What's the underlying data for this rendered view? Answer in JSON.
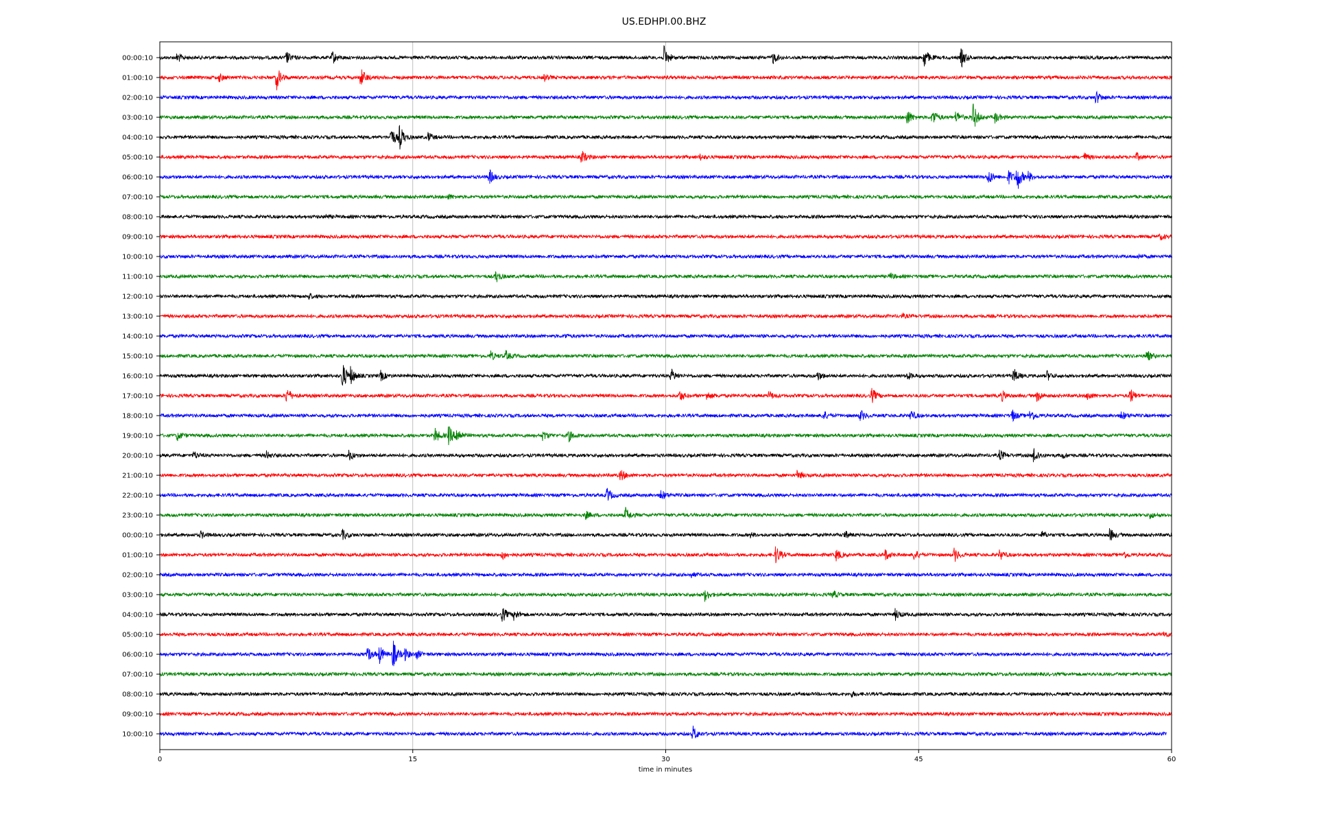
{
  "chart_data": {
    "type": "line",
    "title": "US.EDHPI.00.BHZ",
    "xlabel": "time in minutes",
    "ylabel": "",
    "xlim": [
      0,
      60
    ],
    "x_ticks": [
      0,
      15,
      30,
      45,
      60
    ],
    "x_tick_labels": [
      "0",
      "15",
      "30",
      "45",
      "60"
    ],
    "grid": "vertical lines at x ticks",
    "colors": [
      "#000000",
      "#ff0000",
      "#0000ff",
      "#008000"
    ],
    "y_tick_labels": [
      "00:00:10",
      "01:00:10",
      "02:00:10",
      "03:00:10",
      "04:00:10",
      "05:00:10",
      "06:00:10",
      "07:00:10",
      "08:00:10",
      "09:00:10",
      "10:00:10",
      "11:00:10",
      "12:00:10",
      "13:00:10",
      "14:00:10",
      "15:00:10",
      "16:00:10",
      "17:00:10",
      "18:00:10",
      "19:00:10",
      "20:00:10",
      "21:00:10",
      "22:00:10",
      "23:00:10",
      "00:00:10",
      "01:00:10",
      "02:00:10",
      "03:00:10",
      "04:00:10",
      "05:00:10",
      "06:00:10",
      "07:00:10",
      "08:00:10",
      "09:00:10",
      "10:00:10"
    ],
    "last_trace_end_minute": 59.7,
    "events": [
      [
        [
          1.0,
          0.35
        ],
        [
          7.5,
          0.4
        ],
        [
          10.2,
          0.45
        ],
        [
          29.9,
          0.7
        ],
        [
          36.3,
          0.45
        ],
        [
          45.3,
          0.7
        ],
        [
          47.5,
          0.65
        ]
      ],
      [
        [
          3.5,
          0.25
        ],
        [
          6.9,
          0.8
        ],
        [
          11.9,
          0.65
        ],
        [
          22.8,
          0.2
        ]
      ],
      [
        [
          55.5,
          0.45
        ]
      ],
      [
        [
          44.3,
          0.55
        ],
        [
          45.8,
          0.6
        ],
        [
          47.2,
          0.45
        ],
        [
          48.2,
          1.0
        ],
        [
          49.5,
          0.35
        ]
      ],
      [
        [
          13.7,
          0.7
        ],
        [
          14.2,
          0.8
        ],
        [
          15.9,
          0.3
        ]
      ],
      [
        [
          25.0,
          0.45
        ],
        [
          32.0,
          0.2
        ],
        [
          54.8,
          0.25
        ],
        [
          57.9,
          0.25
        ]
      ],
      [
        [
          19.5,
          0.55
        ],
        [
          49.1,
          0.55
        ],
        [
          50.3,
          0.5
        ],
        [
          50.8,
          1.0
        ],
        [
          51.5,
          0.3
        ]
      ],
      [
        [
          17.1,
          0.15
        ]
      ],
      [
        [
          9.8,
          0.12
        ]
      ],
      [
        [
          59.3,
          0.2
        ]
      ],
      [
        [
          58.0,
          0.1
        ]
      ],
      [
        [
          19.9,
          0.4
        ],
        [
          43.3,
          0.2
        ]
      ],
      [
        [
          8.8,
          0.2
        ]
      ],
      [
        [
          44.0,
          0.1
        ]
      ],
      [
        [
          24.0,
          0.12
        ]
      ],
      [
        [
          19.6,
          0.3
        ],
        [
          20.5,
          0.3
        ],
        [
          58.5,
          0.4
        ]
      ],
      [
        [
          10.8,
          1.0
        ],
        [
          11.3,
          0.5
        ],
        [
          13.1,
          0.3
        ],
        [
          30.3,
          0.45
        ],
        [
          39.0,
          0.3
        ],
        [
          44.3,
          0.25
        ],
        [
          50.6,
          0.5
        ],
        [
          52.6,
          0.3
        ]
      ],
      [
        [
          7.5,
          0.55
        ],
        [
          30.8,
          0.35
        ],
        [
          32.4,
          0.3
        ],
        [
          36.1,
          0.3
        ],
        [
          42.2,
          0.5
        ],
        [
          49.9,
          0.35
        ],
        [
          52.0,
          0.4
        ],
        [
          55.0,
          0.3
        ],
        [
          57.5,
          0.55
        ]
      ],
      [
        [
          39.3,
          0.35
        ],
        [
          41.5,
          0.4
        ],
        [
          44.5,
          0.35
        ],
        [
          50.5,
          0.45
        ],
        [
          51.6,
          0.45
        ],
        [
          57.0,
          0.3
        ]
      ],
      [
        [
          1.0,
          0.35
        ],
        [
          16.3,
          0.5
        ],
        [
          17.1,
          0.7
        ],
        [
          17.6,
          0.55
        ],
        [
          22.7,
          0.3
        ],
        [
          24.2,
          0.4
        ]
      ],
      [
        [
          2.0,
          0.25
        ],
        [
          6.3,
          0.25
        ],
        [
          11.2,
          0.35
        ],
        [
          49.8,
          0.35
        ],
        [
          51.8,
          0.6
        ],
        [
          53.5,
          0.2
        ]
      ],
      [
        [
          27.3,
          0.4
        ],
        [
          37.8,
          0.3
        ]
      ],
      [
        [
          26.5,
          0.5
        ],
        [
          29.7,
          0.35
        ]
      ],
      [
        [
          25.2,
          0.3
        ],
        [
          27.6,
          0.5
        ],
        [
          58.7,
          0.2
        ]
      ],
      [
        [
          2.4,
          0.25
        ],
        [
          10.8,
          0.35
        ],
        [
          35.0,
          0.15
        ],
        [
          40.6,
          0.25
        ],
        [
          52.3,
          0.2
        ],
        [
          56.3,
          0.45
        ]
      ],
      [
        [
          20.3,
          0.3
        ],
        [
          36.5,
          0.65
        ],
        [
          40.1,
          0.4
        ],
        [
          43.0,
          0.35
        ],
        [
          44.7,
          0.35
        ],
        [
          47.1,
          0.45
        ],
        [
          49.8,
          0.3
        ],
        [
          57.1,
          0.25
        ]
      ],
      [
        [
          31.5,
          0.15
        ]
      ],
      [
        [
          32.3,
          0.4
        ],
        [
          39.9,
          0.25
        ]
      ],
      [
        [
          20.3,
          0.5
        ],
        [
          21.0,
          0.35
        ],
        [
          43.6,
          0.35
        ]
      ],
      [
        [
          59.5,
          0.2
        ]
      ],
      [
        [
          12.3,
          0.5
        ],
        [
          13.0,
          0.6
        ],
        [
          13.8,
          1.0
        ],
        [
          14.5,
          0.4
        ],
        [
          15.2,
          0.3
        ]
      ],
      [],
      [
        [
          41.0,
          0.15
        ]
      ],
      [],
      [
        [
          31.6,
          0.5
        ]
      ]
    ]
  }
}
